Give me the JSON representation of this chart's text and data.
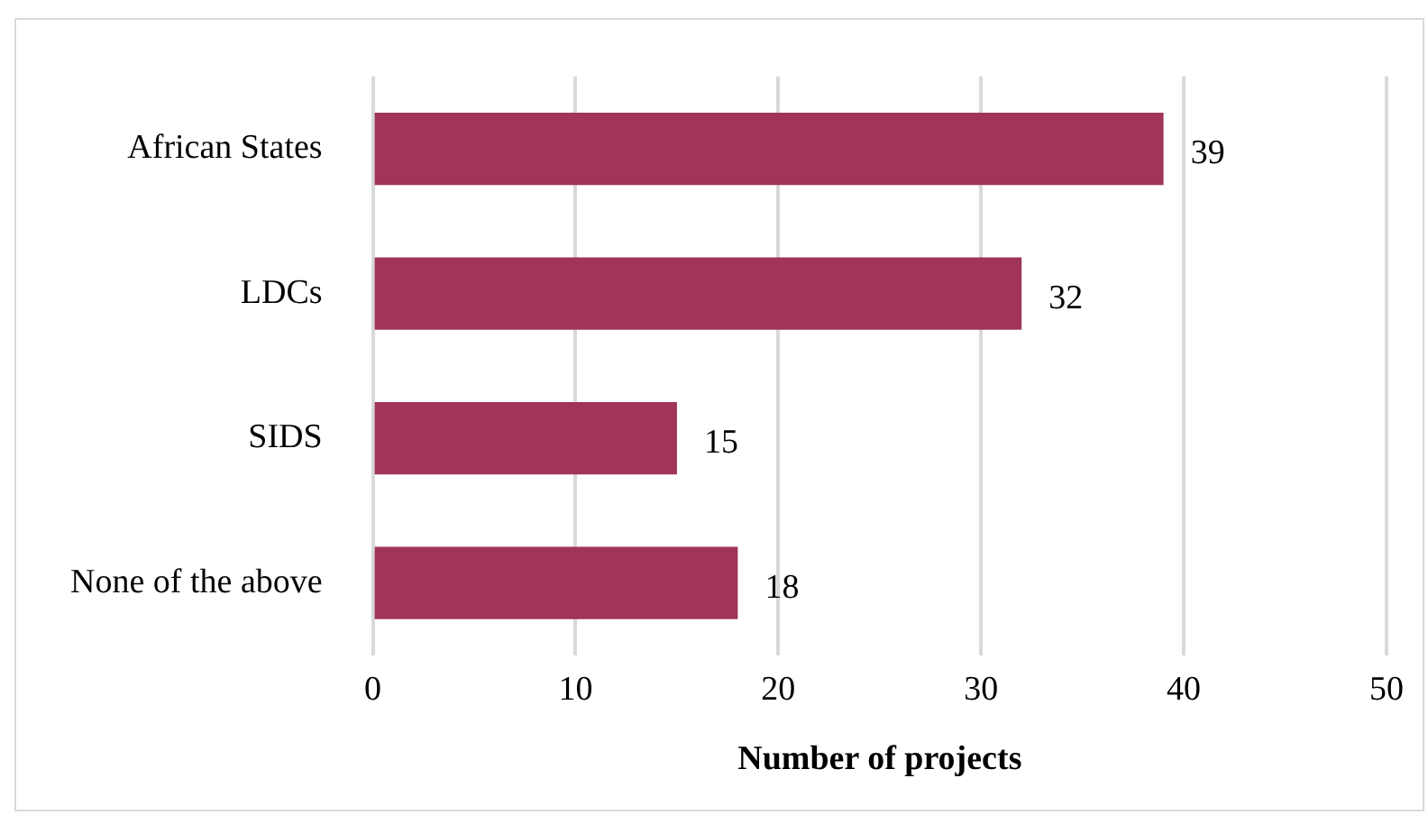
{
  "chart_data": {
    "type": "bar",
    "orientation": "horizontal",
    "xlabel": "Number of projects",
    "categories": [
      "African States",
      "LDCs",
      "SIDS",
      "None of the above"
    ],
    "values": [
      39,
      32,
      15,
      18
    ],
    "color": "#a0345a",
    "xlim": [
      0,
      50
    ],
    "xticks": [
      0,
      10,
      20,
      30,
      40,
      50
    ],
    "grid": "x",
    "data_labels": true,
    "legend": false
  }
}
